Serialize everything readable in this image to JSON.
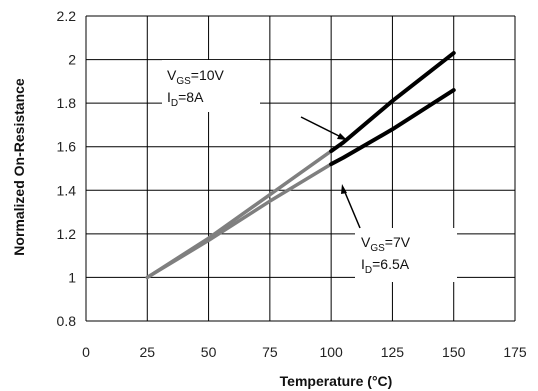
{
  "chart_data": {
    "type": "line",
    "xlabel": "Temperature (°C)",
    "ylabel": "Normalized On-Resistance",
    "xlim": [
      0,
      175
    ],
    "ylim": [
      0.8,
      2.2
    ],
    "x_ticks": [
      "0",
      "25",
      "50",
      "75",
      "100",
      "125",
      "150",
      "175"
    ],
    "y_ticks": [
      "0.8",
      "1",
      "1.2",
      "1.4",
      "1.6",
      "1.8",
      "2",
      "2.2"
    ],
    "grid": true,
    "series": [
      {
        "name": "V_GS=10V, I_D=8A",
        "x": [
          25,
          50,
          75,
          100,
          105,
          125,
          150
        ],
        "y": [
          1.0,
          1.18,
          1.38,
          1.58,
          1.62,
          1.81,
          2.03
        ]
      },
      {
        "name": "V_GS=7V, I_D=6.5A",
        "x": [
          25,
          50,
          75,
          100,
          105,
          125,
          150
        ],
        "y": [
          1.0,
          1.17,
          1.35,
          1.52,
          1.55,
          1.68,
          1.86
        ]
      }
    ],
    "annotations": [
      {
        "id": "a1",
        "line1": {
          "main": "V",
          "sub": "GS",
          "rest": "=10V"
        },
        "line2": {
          "main": "I",
          "sub": "D",
          "rest": "=8A"
        }
      },
      {
        "id": "a2",
        "line1": {
          "main": "V",
          "sub": "GS",
          "rest": "=7V"
        },
        "line2": {
          "main": "I",
          "sub": "D",
          "rest": "=6.5A"
        }
      }
    ],
    "colors": {
      "grid": "#000000",
      "light_segment": "#7f7f7f",
      "dark_segment": "#000000"
    }
  }
}
